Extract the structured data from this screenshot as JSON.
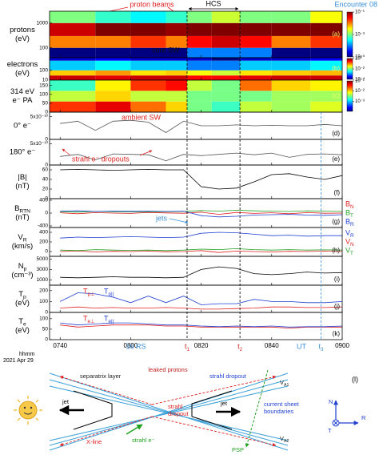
{
  "chart_data": [
    {
      "type": "heatmap",
      "panel": "(a)",
      "ylabel": [
        "protons",
        "(eV)"
      ],
      "log": true,
      "ylim": [
        40,
        3000
      ],
      "yticks": [
        100,
        1000
      ],
      "xlim": [
        457,
        540
      ],
      "x": [
        457,
        470,
        480,
        490,
        496,
        503,
        511,
        520,
        531,
        540
      ],
      "y": [
        40,
        100,
        300,
        1000,
        3000
      ],
      "values": [
        [
          1e-05,
          1e-05,
          1e-05,
          1e-05,
          0.0001,
          0.0001,
          0.0001,
          1e-05,
          1e-05
        ],
        [
          0.01,
          0.01,
          0.02,
          0.01,
          0.03,
          0.05,
          0.03,
          0.01,
          0.02
        ],
        [
          0.05,
          0.1,
          0.1,
          0.08,
          0.1,
          0.1,
          0.1,
          0.1,
          0.1
        ],
        [
          0.001,
          0.0005,
          0.0003,
          0.0005,
          0.001,
          0.002,
          0.001,
          0.001,
          0.003
        ]
      ],
      "colorbar": {
        "lim": [
          1e-05,
          0.1
        ],
        "ticks": [
          {
            "value": 0.1,
            "label": "10⁻¹"
          },
          {
            "value": 0.001,
            "label": "10⁻³"
          },
          {
            "value": 1e-05,
            "label": "10⁻⁵"
          }
        ]
      }
    },
    {
      "type": "heatmap",
      "panel": "(b)",
      "ylabel": [
        "electrons",
        "(eV)"
      ],
      "log": true,
      "ylim": [
        10,
        2000
      ],
      "yticks": [
        10,
        100
      ],
      "xlim": [
        457,
        540
      ],
      "x": [
        457,
        470,
        480,
        490,
        496,
        503,
        511,
        520,
        531,
        540
      ],
      "y": [
        10,
        30,
        100,
        1000,
        2000
      ],
      "values": [
        [
          0.5,
          0.4,
          0.5,
          0.5,
          0.3,
          0.3,
          0.4,
          0.5,
          0.5
        ],
        [
          0.05,
          0.08,
          0.04,
          0.05,
          0.03,
          0.02,
          0.04,
          0.05,
          0.06
        ],
        [
          0.002,
          0.003,
          0.002,
          0.002,
          0.001,
          0.001,
          0.002,
          0.002,
          0.003
        ],
        [
          0.0002,
          0.0003,
          0.0002,
          0.0002,
          0.0002,
          0.0001,
          0.0002,
          0.0002,
          0.0003
        ]
      ],
      "colorbar": {
        "lim": [
          0.0001,
          1
        ],
        "ticks": [
          {
            "value": 1,
            "label": "10⁰"
          },
          {
            "value": 0.01,
            "label": "10⁻²"
          },
          {
            "value": 0.0001,
            "label": "10⁻⁴"
          }
        ]
      }
    },
    {
      "type": "heatmap",
      "panel": "(c)",
      "ylabel": [
        "314 eV",
        "e⁻ PA"
      ],
      "log": false,
      "ylim": [
        0,
        180
      ],
      "yticks": [
        0,
        50,
        100,
        150
      ],
      "xlim": [
        457,
        540
      ],
      "x": [
        457,
        470,
        480,
        490,
        496,
        503,
        511,
        520,
        531,
        540
      ],
      "y": [
        0,
        60,
        120,
        180
      ],
      "values": [
        [
          0.03,
          0.05,
          0.02,
          0.01,
          0.003,
          0.002,
          0.005,
          0.004,
          0.006
        ],
        [
          0.005,
          0.01,
          0.005,
          0.005,
          0.003,
          0.003,
          0.003,
          0.004,
          0.004
        ],
        [
          0.002,
          0.008,
          0.03,
          0.04,
          0.005,
          0.003,
          0.02,
          0.01,
          0.008
        ]
      ],
      "colorbar": {
        "lim": [
          0.0001,
          0.1
        ],
        "ticks": [
          {
            "value": 0.1,
            "label": "10⁻¹"
          },
          {
            "value": 0.01,
            "label": "10⁻²"
          },
          {
            "value": 0.001,
            "label": "10⁻³"
          }
        ]
      }
    },
    {
      "type": "line",
      "panel": "(d)",
      "ylabel": [
        "0° e⁻"
      ],
      "ylim": [
        0,
        6e-10
      ],
      "yticks": [
        0,
        {
          "value": 5e-10,
          "label": "5x10⁻¹⁰"
        }
      ],
      "xlim": [
        457,
        540
      ],
      "x": [
        460,
        465,
        470,
        475,
        480,
        485,
        490,
        495,
        500,
        505,
        510,
        515,
        520,
        525,
        530,
        535,
        540
      ],
      "color": "#555555",
      "values": [
        3.5e-10,
        4e-10,
        2e-10,
        4e-10,
        4.2e-10,
        3.8e-10,
        1.5e-10,
        4e-10,
        3e-10,
        3e-10,
        3.2e-10,
        3e-10,
        3.1e-10,
        3e-10,
        3e-10,
        3.3e-10,
        3e-10
      ]
    },
    {
      "type": "line",
      "panel": "(e)",
      "ylabel": [
        "180° e⁻"
      ],
      "ylim": [
        0,
        6e-10
      ],
      "yticks": [
        0,
        {
          "value": 5e-10,
          "label": "5x10⁻¹⁰"
        }
      ],
      "xlim": [
        457,
        540
      ],
      "x": [
        460,
        465,
        470,
        475,
        480,
        485,
        490,
        495,
        500,
        505,
        510,
        515,
        520,
        525,
        530,
        535,
        540
      ],
      "color": "#555555",
      "values": [
        2e-10,
        2.5e-10,
        1.2e-10,
        2.6e-10,
        2.5e-10,
        2.4e-10,
        1e-10,
        2.5e-10,
        2.2e-10,
        2.5e-10,
        2.8e-10,
        2.4e-10,
        2.8e-10,
        1.8e-10,
        2.5e-10,
        2.6e-10,
        2.4e-10
      ]
    },
    {
      "type": "line",
      "panel": "(f)",
      "ylabel": [
        "|B|",
        "(nT)"
      ],
      "ylim": [
        0,
        70
      ],
      "yticks": [
        0,
        20,
        40,
        60
      ],
      "xlim": [
        457,
        540
      ],
      "x": [
        460,
        465,
        470,
        475,
        480,
        485,
        490,
        495,
        500,
        505,
        510,
        515,
        520,
        525,
        530,
        535,
        540
      ],
      "color": "#000000",
      "values": [
        60,
        61,
        60,
        59,
        60,
        61,
        60,
        60,
        25,
        20,
        22,
        35,
        50,
        52,
        45,
        40,
        48
      ]
    },
    {
      "type": "line",
      "panel": "(g)",
      "ylabel": [
        "BRTN",
        "(nT)"
      ],
      "ylim": [
        -450,
        450
      ],
      "yticks": [
        -400,
        0,
        400
      ],
      "xlim": [
        457,
        540
      ],
      "legend": "right",
      "x": [
        460,
        465,
        470,
        475,
        480,
        485,
        490,
        495,
        500,
        505,
        510,
        515,
        520,
        525,
        530,
        535,
        540
      ],
      "series": [
        {
          "name": "BN",
          "color": "#e02020",
          "values": [
            10,
            -20,
            15,
            0,
            -10,
            20,
            5,
            -5,
            30,
            -40,
            20,
            -10,
            10,
            -20,
            15,
            -5,
            0
          ]
        },
        {
          "name": "BT",
          "color": "#20a020",
          "values": [
            40,
            30,
            50,
            40,
            35,
            45,
            40,
            50,
            80,
            60,
            90,
            70,
            60,
            50,
            70,
            60,
            50
          ]
        },
        {
          "name": "BR",
          "color": "#1f3fd0",
          "values": [
            60,
            70,
            50,
            60,
            55,
            60,
            50,
            60,
            -80,
            -120,
            -100,
            -60,
            -50,
            -40,
            -60,
            -70,
            -50
          ]
        }
      ]
    },
    {
      "type": "line",
      "panel": "(h)",
      "ylabel": [
        "VR",
        "(km/s)"
      ],
      "ylim": [
        -100,
        500
      ],
      "yticks": [
        0,
        200,
        400
      ],
      "xlim": [
        457,
        540
      ],
      "legend": "right",
      "x": [
        460,
        465,
        470,
        475,
        480,
        485,
        490,
        495,
        500,
        505,
        510,
        515,
        520,
        525,
        530,
        535,
        540
      ],
      "series": [
        {
          "name": "VR",
          "color": "#1f3fd0",
          "values": [
            280,
            300,
            290,
            300,
            310,
            300,
            290,
            300,
            380,
            400,
            390,
            360,
            330,
            340,
            320,
            330,
            330
          ]
        },
        {
          "name": "VN",
          "color": "#e02020",
          "values": [
            0,
            10,
            -10,
            5,
            0,
            10,
            -5,
            0,
            20,
            -20,
            10,
            0,
            -10,
            5,
            0,
            10,
            0
          ]
        },
        {
          "name": "VT",
          "color": "#20a020",
          "values": [
            30,
            20,
            40,
            30,
            25,
            30,
            20,
            30,
            50,
            40,
            60,
            40,
            30,
            40,
            30,
            35,
            30
          ]
        }
      ]
    },
    {
      "type": "line",
      "panel": "(i)",
      "ylabel": [
        "Np",
        "(cm⁻³)"
      ],
      "ylim": [
        0,
        5500
      ],
      "yticks": [
        1000,
        3000,
        5000
      ],
      "xlim": [
        457,
        540
      ],
      "x": [
        460,
        465,
        470,
        475,
        480,
        485,
        490,
        495,
        500,
        505,
        510,
        515,
        520,
        525,
        530,
        535,
        540
      ],
      "color": "#000000",
      "values": [
        1500,
        1400,
        1500,
        1600,
        1500,
        1500,
        1400,
        1500,
        3000,
        3500,
        3200,
        2200,
        2000,
        2200,
        2500,
        2300,
        2400
      ]
    },
    {
      "type": "line",
      "panel": "(j)",
      "ylabel": [
        "Tp",
        "(eV)"
      ],
      "ylim": [
        0,
        250
      ],
      "yticks": [
        0,
        100,
        200
      ],
      "xlim": [
        457,
        540
      ],
      "legend": "upper-left",
      "x": [
        460,
        465,
        470,
        475,
        480,
        485,
        490,
        495,
        500,
        505,
        510,
        515,
        520,
        525,
        530,
        535,
        540
      ],
      "series": [
        {
          "name": "Tp⊥",
          "color": "#e02020",
          "values": [
            40,
            50,
            40,
            45,
            40,
            40,
            45,
            40,
            30,
            30,
            35,
            40,
            50,
            50,
            45,
            45,
            50
          ]
        },
        {
          "name": "Tp||",
          "color": "#1f3fd0",
          "values": [
            100,
            180,
            170,
            140,
            90,
            150,
            90,
            150,
            70,
            80,
            80,
            120,
            100,
            100,
            90,
            90,
            100
          ]
        }
      ]
    },
    {
      "type": "line",
      "panel": "(k)",
      "ylabel": [
        "Te",
        "(eV)"
      ],
      "ylim": [
        0,
        130
      ],
      "yticks": [
        0,
        50,
        100
      ],
      "xlim": [
        457,
        540
      ],
      "legend": "upper-left",
      "x": [
        460,
        465,
        470,
        475,
        480,
        485,
        490,
        495,
        500,
        505,
        510,
        515,
        520,
        525,
        530,
        535,
        540
      ],
      "xticks": [
        {
          "value": 460,
          "label": "0740"
        },
        {
          "value": 480,
          "label": "0800"
        },
        {
          "value": 500,
          "label": "0820"
        },
        {
          "value": 520,
          "label": "0840"
        },
        {
          "value": 540,
          "label": "0900"
        }
      ],
      "series": [
        {
          "name": "Te⊥",
          "color": "#e02020",
          "values": [
            70,
            60,
            65,
            70,
            70,
            70,
            65,
            65,
            60,
            60,
            60,
            60,
            60,
            55,
            60,
            60,
            60
          ]
        },
        {
          "name": "Te||",
          "color": "#1f3fd0",
          "values": [
            80,
            70,
            75,
            80,
            80,
            75,
            70,
            70,
            65,
            62,
            65,
            62,
            65,
            60,
            62,
            62,
            65
          ]
        }
      ]
    }
  ],
  "events": [
    {
      "label": "t1",
      "x": 496,
      "color": "#d62020"
    },
    {
      "label": "t2",
      "x": 511,
      "color": "#d62020"
    },
    {
      "label": "t3",
      "x": 534,
      "color": "#3a8fd6"
    }
  ],
  "annotations": {
    "proton_beams": "proton beams",
    "hcs": "HCS",
    "encounter": "Encounter 08",
    "core_sw": "core SW",
    "ambient_sw": "ambient SW",
    "strahl_dropouts": "strahl e⁻ dropouts",
    "jets": "jets"
  },
  "time_axis": {
    "unit": "hhmm",
    "date": "2021 Apr 29",
    "distance": "16 RS",
    "ut": "UT"
  },
  "diagram": {
    "panel": "(l)",
    "leaked_protons": "leaked protons",
    "separatrix": "separatrix layer",
    "strahl_dropout_top": "strahl dropout",
    "va1": "VA1",
    "jet_left": "jet",
    "jet_right": "jet",
    "strahl_dropout_mid": [
      "strahl",
      "dropout"
    ],
    "current_sheet": [
      "current sheet",
      "boundaries"
    ],
    "x_line": "X-line",
    "strahl_e": "strahl e⁻",
    "va2": "VA2",
    "psp": "PSP",
    "axes": {
      "n": "N",
      "r": "R",
      "t": "T"
    }
  }
}
